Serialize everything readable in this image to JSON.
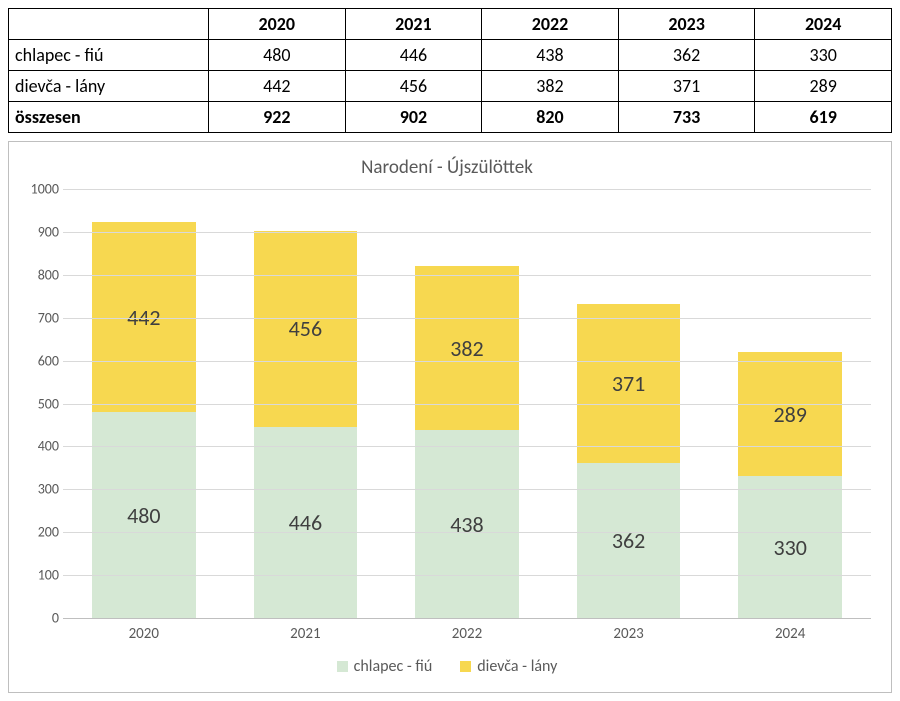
{
  "table": {
    "header_blank": "",
    "years": [
      "2020",
      "2021",
      "2022",
      "2023",
      "2024"
    ],
    "rows": [
      {
        "label": "chlapec - fiú",
        "cells": [
          "480",
          "446",
          "438",
          "362",
          "330"
        ]
      },
      {
        "label": "dievča - lány",
        "cells": [
          "442",
          "456",
          "382",
          "371",
          "289"
        ]
      }
    ],
    "total": {
      "label": "összesen",
      "cells": [
        "922",
        "902",
        "820",
        "733",
        "619"
      ]
    }
  },
  "chart": {
    "type": "stacked-bar",
    "title": "Narodení - Újszülöttek",
    "background_color": "#ffffff",
    "grid_color": "#d9d9d9",
    "axis_color": "#bfbfbf",
    "text_color": "#595959",
    "title_fontsize": 19,
    "tick_fontsize": 14,
    "datalabel_fontsize": 22,
    "ylim": [
      0,
      1000
    ],
    "ytick_step": 100,
    "categories": [
      "2020",
      "2021",
      "2022",
      "2023",
      "2024"
    ],
    "series": [
      {
        "name": "chlapec - fiú",
        "color": "#d5e8d4",
        "values": [
          480,
          446,
          438,
          362,
          330
        ]
      },
      {
        "name": "dievča - lány",
        "color": "#f7d850",
        "values": [
          442,
          456,
          382,
          371,
          289
        ]
      }
    ],
    "bar_width_ratio": 0.64,
    "legend_position": "bottom"
  }
}
